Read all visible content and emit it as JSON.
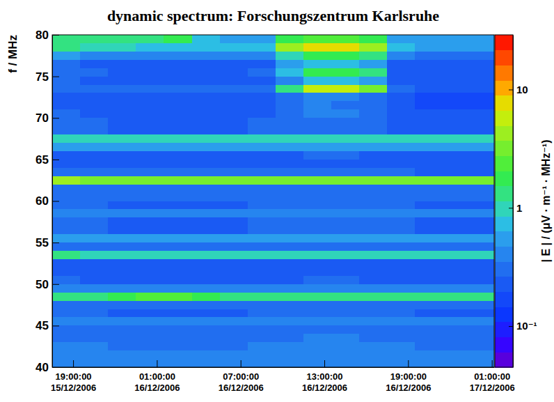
{
  "chart_data": {
    "type": "heatmap",
    "title": "dynamic spectrum: Forschungszentrum Karlsruhe",
    "y_label": "f / MHz",
    "colorbar_label": "| E | / (μV · m⁻¹ · MHz⁻¹)",
    "grid": false,
    "x": [
      "2006-12-15 17:30",
      "2006-12-15 19:30",
      "2006-12-15 21:30",
      "2006-12-15 23:30",
      "2006-12-16 01:30",
      "2006-12-16 03:30",
      "2006-12-16 05:30",
      "2006-12-16 07:30",
      "2006-12-16 09:30",
      "2006-12-16 11:30",
      "2006-12-16 13:30",
      "2006-12-16 15:30",
      "2006-12-16 17:30",
      "2006-12-16 19:30",
      "2006-12-16 21:30",
      "2006-12-16 23:30",
      "2006-12-17 01:10"
    ],
    "y": [
      40,
      41,
      42,
      43,
      44,
      45,
      46,
      47,
      48,
      49,
      50,
      51,
      52,
      53,
      54,
      55,
      56,
      57,
      58,
      59,
      60,
      61,
      62,
      63,
      64,
      65,
      66,
      67,
      68,
      69,
      70,
      71,
      72,
      73,
      74,
      75,
      76,
      77,
      78,
      79,
      80
    ],
    "xlim": [
      "2006-12-15 17:30",
      "2006-12-17 01:10"
    ],
    "ylim": [
      40,
      80
    ],
    "xticks": [
      {
        "value": "2006-12-15 19:00",
        "label": "19:00:00\n15/12/2006"
      },
      {
        "value": "2006-12-16 01:00",
        "label": "01:00:00\n16/12/2006"
      },
      {
        "value": "2006-12-16 07:00",
        "label": "07:00:00\n16/12/2006"
      },
      {
        "value": "2006-12-16 13:00",
        "label": "13:00:00\n16/12/2006"
      },
      {
        "value": "2006-12-16 19:00",
        "label": "19:00:00\n16/12/2006"
      },
      {
        "value": "2006-12-17 01:00",
        "label": "01:00:00\n17/12/2006"
      }
    ],
    "yticks": [
      40,
      45,
      50,
      55,
      60,
      65,
      70,
      75,
      80
    ],
    "colorbar_lim": [
      0.045,
      29
    ],
    "colorbar_ticks": [
      {
        "value": 0.1,
        "label": "10⁻¹"
      },
      1,
      10
    ],
    "cells": [
      [
        0.45,
        0.45,
        0.4,
        0.4,
        0.4,
        0.4,
        0.4,
        0.45,
        0.45,
        0.45,
        0.45,
        0.45,
        0.45,
        0.4,
        0.4,
        0.4
      ],
      [
        0.4,
        0.4,
        0.38,
        0.38,
        0.38,
        0.38,
        0.38,
        0.4,
        0.4,
        0.42,
        0.42,
        0.4,
        0.4,
        0.38,
        0.38,
        0.38
      ],
      [
        0.38,
        0.38,
        0.35,
        0.35,
        0.35,
        0.35,
        0.35,
        0.38,
        0.38,
        0.4,
        0.4,
        0.38,
        0.38,
        0.35,
        0.35,
        0.35
      ],
      [
        0.35,
        0.35,
        0.32,
        0.32,
        0.32,
        0.32,
        0.32,
        0.35,
        0.35,
        0.36,
        0.36,
        0.35,
        0.35,
        0.32,
        0.32,
        0.32
      ],
      [
        0.32,
        0.3,
        0.28,
        0.28,
        0.28,
        0.28,
        0.28,
        0.3,
        0.3,
        0.32,
        0.32,
        0.3,
        0.3,
        0.28,
        0.28,
        0.28
      ],
      [
        0.45,
        0.42,
        0.4,
        0.4,
        0.4,
        0.4,
        0.4,
        0.42,
        0.42,
        0.45,
        0.45,
        0.42,
        0.42,
        0.4,
        0.4,
        0.4
      ],
      [
        0.3,
        0.28,
        0.26,
        0.26,
        0.26,
        0.26,
        0.26,
        0.28,
        0.28,
        0.3,
        0.3,
        0.28,
        0.28,
        0.26,
        0.26,
        0.26
      ],
      [
        0.3,
        0.3,
        0.28,
        0.28,
        0.28,
        0.28,
        0.28,
        0.3,
        0.3,
        0.3,
        0.3,
        0.3,
        0.28,
        0.28,
        0.28,
        0.28
      ],
      [
        1.4,
        1.4,
        1.6,
        2.2,
        2.5,
        2.0,
        1.5,
        1.3,
        1.3,
        1.3,
        1.3,
        1.3,
        1.3,
        1.3,
        1.3,
        1.3
      ],
      [
        0.4,
        0.38,
        0.36,
        0.36,
        0.36,
        0.36,
        0.36,
        0.38,
        0.38,
        0.4,
        0.4,
        0.38,
        0.38,
        0.36,
        0.36,
        0.36
      ],
      [
        0.28,
        0.26,
        0.24,
        0.24,
        0.24,
        0.24,
        0.24,
        0.26,
        0.26,
        0.28,
        0.28,
        0.26,
        0.26,
        0.24,
        0.24,
        0.24
      ],
      [
        0.25,
        0.24,
        0.22,
        0.22,
        0.22,
        0.22,
        0.22,
        0.24,
        0.24,
        0.25,
        0.25,
        0.24,
        0.24,
        0.22,
        0.22,
        0.22
      ],
      [
        0.25,
        0.24,
        0.22,
        0.22,
        0.22,
        0.22,
        0.22,
        0.24,
        0.24,
        0.25,
        0.25,
        0.24,
        0.24,
        0.22,
        0.22,
        0.22
      ],
      [
        1.2,
        1.1,
        1.0,
        0.9,
        0.9,
        0.9,
        0.9,
        0.9,
        0.9,
        0.9,
        0.9,
        0.9,
        0.9,
        0.9,
        0.9,
        0.9
      ],
      [
        0.35,
        0.32,
        0.3,
        0.3,
        0.3,
        0.3,
        0.3,
        0.32,
        0.32,
        0.34,
        0.34,
        0.32,
        0.32,
        0.3,
        0.3,
        0.3
      ],
      [
        0.6,
        0.55,
        0.5,
        0.5,
        0.5,
        0.5,
        0.5,
        0.52,
        0.52,
        0.55,
        0.55,
        0.52,
        0.52,
        0.5,
        0.5,
        0.5
      ],
      [
        0.3,
        0.28,
        0.26,
        0.26,
        0.26,
        0.26,
        0.26,
        0.28,
        0.28,
        0.3,
        0.3,
        0.28,
        0.28,
        0.26,
        0.26,
        0.26
      ],
      [
        0.28,
        0.27,
        0.25,
        0.25,
        0.25,
        0.25,
        0.25,
        0.27,
        0.27,
        0.28,
        0.28,
        0.27,
        0.27,
        0.25,
        0.25,
        0.25
      ],
      [
        0.42,
        0.4,
        0.38,
        0.38,
        0.38,
        0.38,
        0.38,
        0.4,
        0.4,
        0.42,
        0.42,
        0.4,
        0.4,
        0.38,
        0.38,
        0.38
      ],
      [
        0.3,
        0.28,
        0.26,
        0.26,
        0.26,
        0.26,
        0.26,
        0.28,
        0.28,
        0.3,
        0.3,
        0.28,
        0.28,
        0.26,
        0.26,
        0.26
      ],
      [
        0.35,
        0.33,
        0.3,
        0.3,
        0.3,
        0.3,
        0.3,
        0.33,
        0.33,
        0.35,
        0.35,
        0.33,
        0.33,
        0.3,
        0.3,
        0.3
      ],
      [
        0.35,
        0.33,
        0.32,
        0.32,
        0.32,
        0.32,
        0.32,
        0.33,
        0.33,
        0.35,
        0.35,
        0.33,
        0.33,
        0.32,
        0.32,
        0.32
      ],
      [
        4,
        3.2,
        3,
        3,
        3,
        3,
        3,
        3,
        3,
        3,
        3,
        3,
        3,
        3,
        3,
        3
      ],
      [
        0.32,
        0.3,
        0.28,
        0.28,
        0.28,
        0.28,
        0.28,
        0.3,
        0.3,
        0.32,
        0.32,
        0.3,
        0.28,
        0.26,
        0.26,
        0.26
      ],
      [
        0.24,
        0.23,
        0.22,
        0.22,
        0.22,
        0.22,
        0.22,
        0.23,
        0.23,
        0.25,
        0.25,
        0.23,
        0.22,
        0.2,
        0.2,
        0.2
      ],
      [
        0.26,
        0.25,
        0.24,
        0.24,
        0.24,
        0.24,
        0.24,
        0.25,
        0.25,
        0.27,
        0.27,
        0.25,
        0.24,
        0.22,
        0.22,
        0.22
      ],
      [
        0.6,
        0.55,
        0.5,
        0.5,
        0.5,
        0.5,
        0.5,
        0.55,
        0.55,
        0.6,
        0.6,
        0.55,
        0.5,
        0.48,
        0.48,
        0.48
      ],
      [
        1.1,
        1.0,
        1.0,
        1.0,
        1.0,
        1.0,
        1.0,
        1.0,
        1.0,
        1.1,
        1.1,
        1.0,
        1.0,
        1.0,
        1.0,
        1.0
      ],
      [
        0.3,
        0.28,
        0.26,
        0.26,
        0.26,
        0.26,
        0.26,
        0.28,
        0.28,
        0.32,
        0.32,
        0.28,
        0.26,
        0.24,
        0.24,
        0.24
      ],
      [
        0.3,
        0.28,
        0.26,
        0.26,
        0.26,
        0.26,
        0.26,
        0.28,
        0.28,
        0.32,
        0.32,
        0.28,
        0.26,
        0.24,
        0.24,
        0.24
      ],
      [
        0.28,
        0.26,
        0.24,
        0.24,
        0.24,
        0.24,
        0.24,
        0.26,
        0.3,
        0.38,
        0.36,
        0.3,
        0.24,
        0.2,
        0.2,
        0.2
      ],
      [
        0.26,
        0.24,
        0.22,
        0.22,
        0.22,
        0.22,
        0.22,
        0.24,
        0.28,
        0.36,
        0.34,
        0.28,
        0.22,
        0.19,
        0.19,
        0.19
      ],
      [
        0.26,
        0.24,
        0.22,
        0.22,
        0.22,
        0.22,
        0.22,
        0.24,
        0.3,
        0.4,
        0.38,
        0.3,
        0.22,
        0.19,
        0.19,
        0.19
      ],
      [
        0.35,
        0.3,
        0.28,
        0.28,
        0.28,
        0.28,
        0.28,
        0.3,
        1.5,
        5,
        5,
        3,
        0.3,
        0.22,
        0.22,
        0.22
      ],
      [
        0.28,
        0.26,
        0.24,
        0.24,
        0.24,
        0.24,
        0.24,
        0.26,
        0.4,
        0.7,
        0.7,
        0.5,
        0.24,
        0.2,
        0.2,
        0.2
      ],
      [
        0.3,
        0.28,
        0.26,
        0.26,
        0.26,
        0.26,
        0.26,
        0.28,
        0.8,
        1.6,
        1.6,
        1.2,
        0.26,
        0.2,
        0.2,
        0.2
      ],
      [
        0.28,
        0.26,
        0.24,
        0.24,
        0.24,
        0.24,
        0.24,
        0.26,
        0.5,
        0.8,
        0.8,
        0.6,
        0.24,
        0.2,
        0.2,
        0.2
      ],
      [
        0.5,
        0.45,
        0.4,
        0.4,
        0.4,
        0.4,
        0.4,
        0.45,
        1.0,
        1.6,
        1.6,
        1.2,
        0.4,
        0.3,
        0.3,
        0.3
      ],
      [
        1.2,
        1.0,
        0.9,
        0.8,
        0.8,
        0.7,
        0.7,
        0.8,
        4,
        7,
        7,
        4,
        0.7,
        0.6,
        0.6,
        0.6
      ],
      [
        1.5,
        1.4,
        1.3,
        1.2,
        1.6,
        0.8,
        0.6,
        0.6,
        2,
        2.5,
        2.5,
        2,
        0.6,
        0.5,
        0.5,
        0.5
      ]
    ]
  }
}
